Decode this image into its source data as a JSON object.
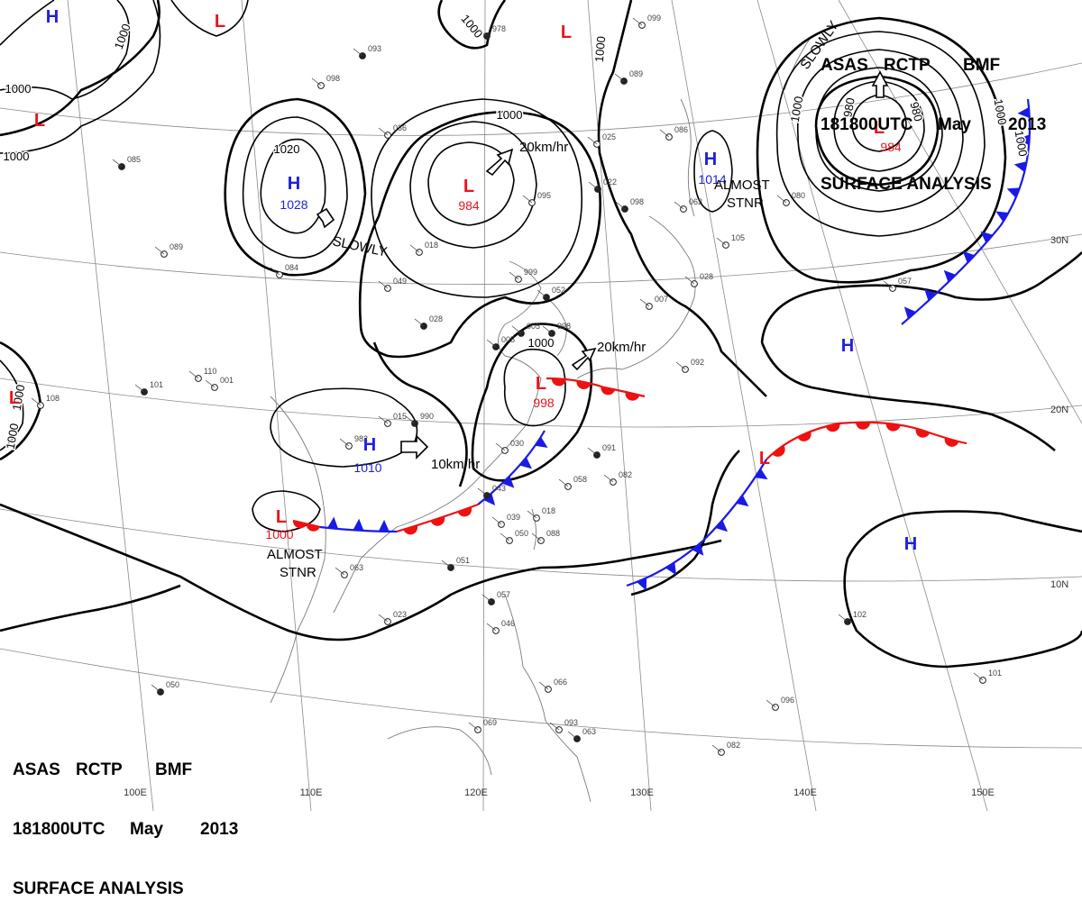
{
  "title": {
    "line1": [
      "ASAS",
      "RCTP",
      "BMF"
    ],
    "line2": [
      "181800UTC",
      "May",
      "2013"
    ],
    "line3": "SURFACE ANALYSIS"
  },
  "lon_labels": [
    "100E",
    "110E",
    "120E",
    "130E",
    "140E",
    "150E"
  ],
  "lat_labels": [
    "30N",
    "20N",
    "10N"
  ],
  "colors": {
    "low": "#e8141e",
    "high": "#1e20e0",
    "warm_front": "#ee1111",
    "cold_front": "#1a1ae6",
    "isobar": "#000000",
    "grid": "#8a8a8a"
  },
  "pressure_systems": [
    {
      "type": "L",
      "value": "984",
      "id": "low-ne-pacific"
    },
    {
      "type": "L",
      "value": "984",
      "id": "low-n-china"
    },
    {
      "type": "L",
      "value": "998",
      "id": "low-east-china"
    },
    {
      "type": "L",
      "value": "1000",
      "id": "low-indochina"
    },
    {
      "type": "L",
      "value": "",
      "id": "low-ne-corner"
    },
    {
      "type": "L",
      "value": "",
      "id": "low-nw-1"
    },
    {
      "type": "L",
      "value": "",
      "id": "low-nw-2"
    },
    {
      "type": "L",
      "value": "",
      "id": "low-west-edge"
    },
    {
      "type": "L",
      "value": "",
      "id": "low-pacific-front"
    },
    {
      "type": "H",
      "value": "1028",
      "id": "high-mongolia"
    },
    {
      "type": "H",
      "value": "1014",
      "id": "high-japan-sea"
    },
    {
      "type": "H",
      "value": "1010",
      "id": "high-south-china"
    },
    {
      "type": "H",
      "value": "",
      "id": "high-pacific-1"
    },
    {
      "type": "H",
      "value": "",
      "id": "high-pacific-2"
    },
    {
      "type": "H",
      "value": "",
      "id": "high-nw-corner"
    }
  ],
  "isobar_labels": [
    "1000",
    "1000",
    "1000",
    "1000",
    "1020",
    "1000",
    "1000",
    "980",
    "980",
    "1000",
    "1000",
    "1000",
    "1000",
    "1000",
    "1000"
  ],
  "motion_labels": [
    "20km/hr",
    "20km/hr",
    "10km/hr",
    "SLOWLY",
    "SLOWLY"
  ],
  "stationary_labels": [
    {
      "line1": "ALMOST",
      "line2": "STNR"
    },
    {
      "line1": "ALMOST",
      "line2": "STNR"
    }
  ],
  "station_reports": [
    "978",
    "099",
    "098",
    "093",
    "084",
    "036",
    "998",
    "025",
    "095",
    "098",
    "028",
    "999",
    "052",
    "018",
    "049",
    "028",
    "080",
    "105",
    "089",
    "086",
    "063",
    "005",
    "015",
    "982",
    "990",
    "030",
    "018",
    "091",
    "082",
    "058",
    "043",
    "039",
    "050",
    "051",
    "063",
    "023",
    "057",
    "046",
    "066",
    "050",
    "069",
    "082",
    "063",
    "093",
    "096",
    "102",
    "101",
    "089",
    "085",
    "110",
    "108",
    "101",
    "001",
    "088",
    "022",
    "007",
    "092",
    "005",
    "057"
  ]
}
